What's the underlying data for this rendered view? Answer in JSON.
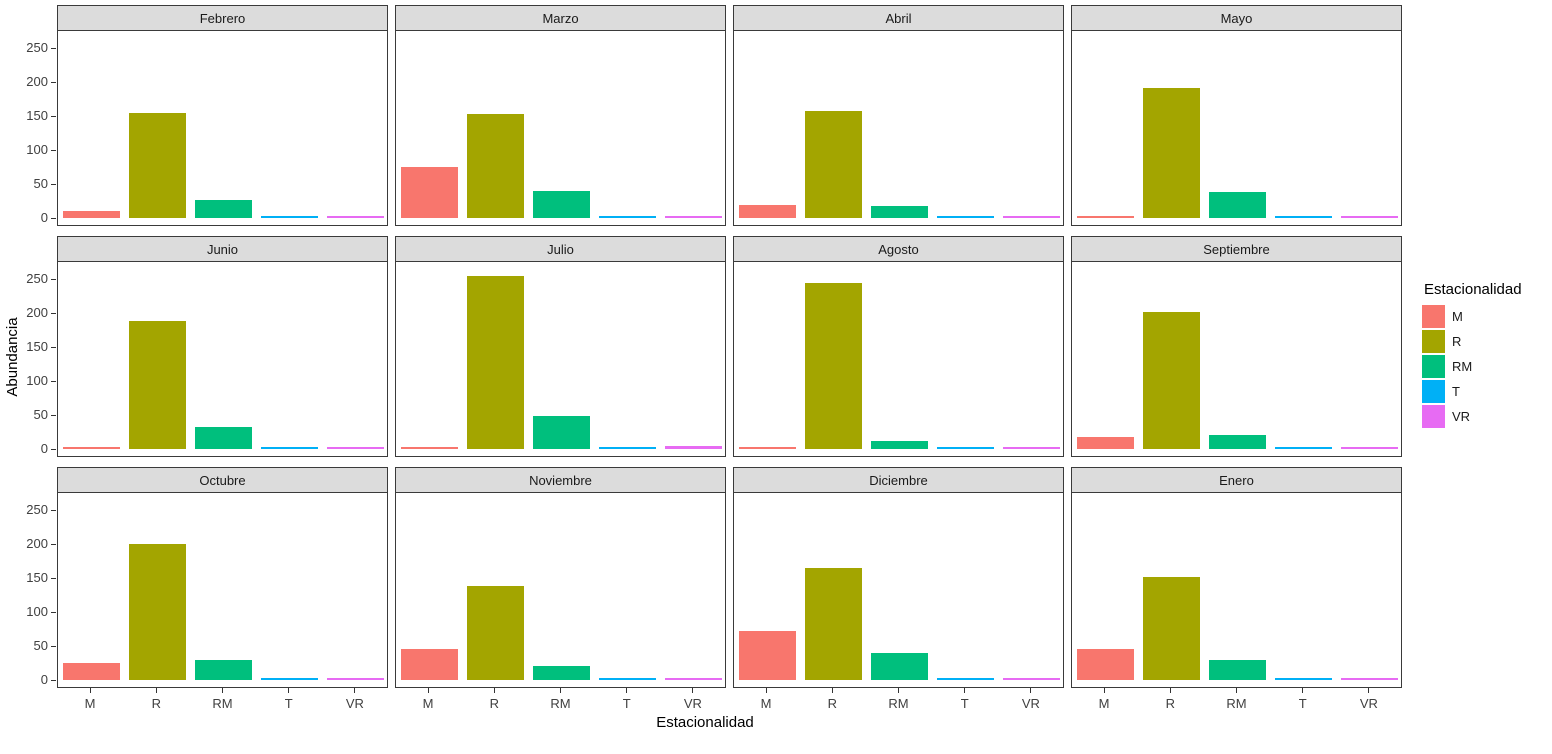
{
  "figure": {
    "x_axis_title": "Estacionalidad",
    "y_axis_title": "Abundancia",
    "y_ticks": [
      0,
      50,
      100,
      150,
      200,
      250
    ]
  },
  "legend": {
    "title": "Estacionalidad",
    "entries": [
      {
        "label": "M",
        "color": "#F8766D"
      },
      {
        "label": "R",
        "color": "#A3A500"
      },
      {
        "label": "RM",
        "color": "#00BF7D"
      },
      {
        "label": "T",
        "color": "#00B0F6"
      },
      {
        "label": "VR",
        "color": "#E76BF3"
      }
    ]
  },
  "chart_data": {
    "type": "bar",
    "faceted": true,
    "title": "",
    "xlabel": "Estacionalidad",
    "ylabel": "Abundancia",
    "ylim": [
      0,
      260
    ],
    "grid": false,
    "legend_position": "right",
    "legend_title": "Estacionalidad",
    "categories": [
      "M",
      "R",
      "RM",
      "T",
      "VR"
    ],
    "series_colors": [
      "#F8766D",
      "#A3A500",
      "#00BF7D",
      "#00B0F6",
      "#E76BF3"
    ],
    "facets": [
      {
        "title": "Febrero",
        "values": [
          11,
          155,
          27,
          1,
          1
        ]
      },
      {
        "title": "Marzo",
        "values": [
          75,
          153,
          40,
          1,
          3
        ]
      },
      {
        "title": "Abril",
        "values": [
          19,
          157,
          17,
          1,
          3
        ]
      },
      {
        "title": "Mayo",
        "values": [
          2,
          191,
          39,
          1,
          2
        ]
      },
      {
        "title": "Junio",
        "values": [
          1,
          188,
          33,
          1,
          1
        ]
      },
      {
        "title": "Julio",
        "values": [
          2,
          254,
          49,
          1,
          4
        ]
      },
      {
        "title": "Agosto",
        "values": [
          3,
          244,
          12,
          1,
          1
        ]
      },
      {
        "title": "Septiembre",
        "values": [
          18,
          202,
          20,
          1,
          2
        ]
      },
      {
        "title": "Octubre",
        "values": [
          25,
          200,
          30,
          3,
          1
        ]
      },
      {
        "title": "Noviembre",
        "values": [
          45,
          138,
          20,
          1,
          1
        ]
      },
      {
        "title": "Diciembre",
        "values": [
          72,
          165,
          40,
          1,
          1
        ]
      },
      {
        "title": "Enero",
        "values": [
          46,
          151,
          30,
          2,
          2
        ]
      }
    ]
  }
}
